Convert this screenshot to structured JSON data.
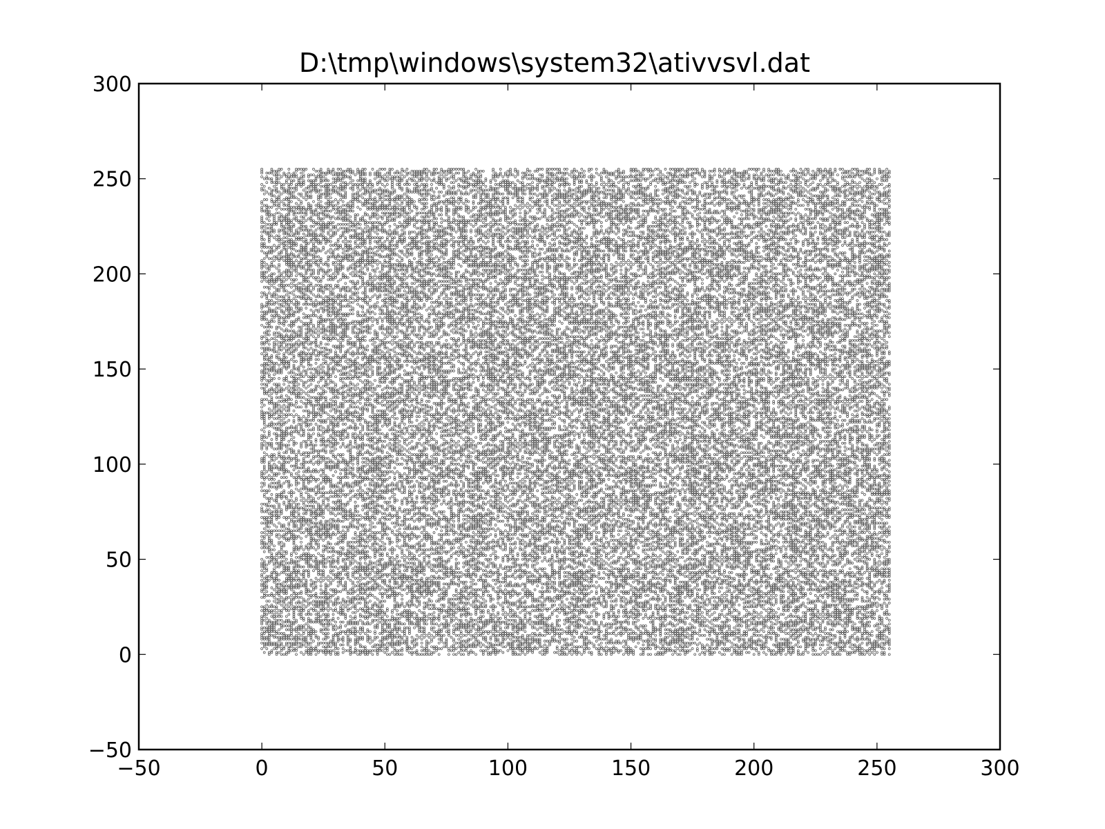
{
  "chart_data": {
    "type": "scatter",
    "title": "D:\\tmp\\windows\\system32\\ativvsvl.dat",
    "xlabel": "",
    "ylabel": "",
    "xlim": [
      -50,
      300
    ],
    "ylim": [
      -50,
      300
    ],
    "x_ticks": [
      -50,
      0,
      50,
      100,
      150,
      200,
      250,
      300
    ],
    "y_ticks": [
      -50,
      0,
      50,
      100,
      150,
      200,
      250,
      300
    ],
    "x_tick_labels": [
      "−50",
      "0",
      "50",
      "100",
      "150",
      "200",
      "250",
      "300"
    ],
    "y_tick_labels": [
      "−50",
      "0",
      "50",
      "100",
      "150",
      "200",
      "250",
      "300"
    ],
    "grid": false,
    "legend": "none",
    "marker": "small hollow circle",
    "marker_color": "#000000",
    "point_cloud": {
      "description": "dense uniform scatter of consecutive byte pairs",
      "x_range": [
        0,
        255
      ],
      "y_range": [
        0,
        255
      ],
      "integer_valued": true,
      "approx_fill_fraction": 0.5
    }
  }
}
